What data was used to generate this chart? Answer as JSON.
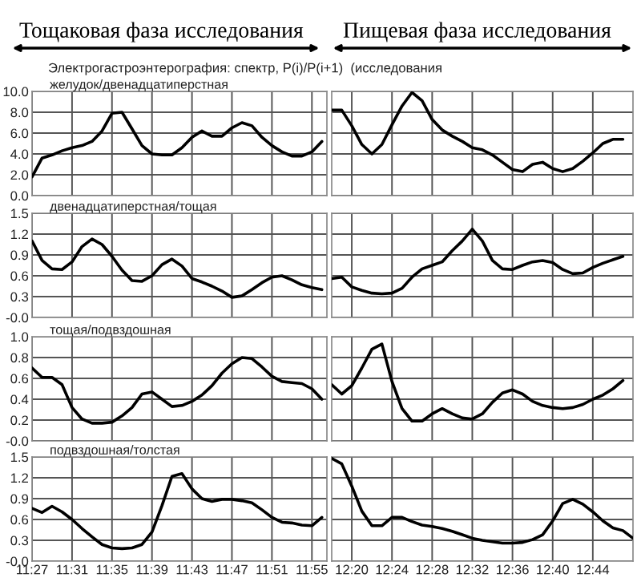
{
  "chart_data": [
    {
      "type": "line",
      "title": "желудок/двенадцатиперстная",
      "annotations": [
        "Тощаковая фаза исследования",
        "Электрогастроэнтерография: спектр, P(i)/P(i+1)  (исследования"
      ],
      "x": [
        11.45,
        11.4667,
        11.4833,
        11.5,
        11.5167,
        11.5333,
        11.55,
        11.5667,
        11.5833,
        11.6,
        11.6167,
        11.6333,
        11.65,
        11.6667,
        11.6833,
        11.7,
        11.7167,
        11.7333,
        11.75,
        11.7667,
        11.7833,
        11.8,
        11.8167,
        11.8333,
        11.85,
        11.8667,
        11.8833,
        11.9,
        11.9167,
        11.9333
      ],
      "series": [
        {
          "color": "#000000",
          "values": [
            1.8,
            3.6,
            3.9,
            4.3,
            4.6,
            4.8,
            5.2,
            6.2,
            7.9,
            8.0,
            6.4,
            4.8,
            4.0,
            3.9,
            3.9,
            4.6,
            5.6,
            6.2,
            5.7,
            5.7,
            6.5,
            7.0,
            6.7,
            5.6,
            4.8,
            4.2,
            3.8,
            3.8,
            4.2,
            5.2
          ]
        }
      ],
      "xlim": [
        11.45,
        11.9417
      ],
      "xticks": [
        {
          "value": 11.45,
          "label": null
        },
        {
          "value": 11.5167,
          "label": null
        },
        {
          "value": 11.5833,
          "label": null
        },
        {
          "value": 11.65,
          "label": null
        },
        {
          "value": 11.7167,
          "label": null
        },
        {
          "value": 11.7833,
          "label": null
        },
        {
          "value": 11.85,
          "label": null
        },
        {
          "value": 11.9167,
          "label": null
        }
      ],
      "ylim": [
        0,
        10
      ],
      "yticks": [
        {
          "value": 0,
          "label": "0.0"
        },
        {
          "value": 2,
          "label": "2.0"
        },
        {
          "value": 4,
          "label": "4.0"
        },
        {
          "value": 6,
          "label": "6.0"
        },
        {
          "value": 8,
          "label": "8.0"
        },
        {
          "value": 10,
          "label": "10.0"
        }
      ],
      "grid": true,
      "tick_labels": "y"
    },
    {
      "type": "line",
      "annotations": [
        "Пищевая фаза исследования"
      ],
      "x": [
        12.3,
        12.3167,
        12.3333,
        12.35,
        12.3667,
        12.3833,
        12.4,
        12.4167,
        12.4333,
        12.45,
        12.4667,
        12.4833,
        12.5,
        12.5167,
        12.5333,
        12.55,
        12.5667,
        12.5833,
        12.6,
        12.6167,
        12.6333,
        12.65,
        12.6667,
        12.6833,
        12.7,
        12.7167,
        12.7333,
        12.75,
        12.7667,
        12.7833
      ],
      "series": [
        {
          "color": "#000000",
          "values": [
            8.2,
            8.2,
            6.7,
            4.9,
            4.0,
            4.9,
            6.8,
            8.6,
            9.9,
            9.1,
            7.3,
            6.3,
            5.7,
            5.2,
            4.6,
            4.4,
            3.9,
            3.2,
            2.5,
            2.3,
            3.0,
            3.2,
            2.6,
            2.3,
            2.6,
            3.3,
            4.1,
            5.0,
            5.4,
            5.4
          ]
        }
      ],
      "xlim": [
        12.3,
        12.8
      ],
      "xticks": [
        {
          "value": 12.3333,
          "label": null
        },
        {
          "value": 12.4,
          "label": null
        },
        {
          "value": 12.4667,
          "label": null
        },
        {
          "value": 12.5333,
          "label": null
        },
        {
          "value": 12.6,
          "label": null
        },
        {
          "value": 12.6667,
          "label": null
        },
        {
          "value": 12.7333,
          "label": null
        }
      ],
      "ylim": [
        0,
        10
      ],
      "yticks": [
        {
          "value": 0,
          "label": null
        },
        {
          "value": 2,
          "label": null
        },
        {
          "value": 4,
          "label": null
        },
        {
          "value": 6,
          "label": null
        },
        {
          "value": 8,
          "label": null
        },
        {
          "value": 10,
          "label": null
        }
      ],
      "grid": true,
      "tick_labels": false
    },
    {
      "type": "line",
      "title": "двенадцатиперстная/тощая",
      "x": [
        11.45,
        11.4667,
        11.4833,
        11.5,
        11.5167,
        11.5333,
        11.55,
        11.5667,
        11.5833,
        11.6,
        11.6167,
        11.6333,
        11.65,
        11.6667,
        11.6833,
        11.7,
        11.7167,
        11.7333,
        11.75,
        11.7667,
        11.7833,
        11.8,
        11.8167,
        11.8333,
        11.85,
        11.8667,
        11.8833,
        11.9,
        11.9167,
        11.9333
      ],
      "series": [
        {
          "color": "#000000",
          "values": [
            1.1,
            0.82,
            0.7,
            0.69,
            0.8,
            1.02,
            1.13,
            1.05,
            0.88,
            0.68,
            0.53,
            0.52,
            0.6,
            0.76,
            0.84,
            0.74,
            0.56,
            0.51,
            0.45,
            0.38,
            0.29,
            0.31,
            0.4,
            0.5,
            0.58,
            0.6,
            0.54,
            0.47,
            0.43,
            0.4
          ]
        }
      ],
      "xlim": [
        11.45,
        11.9417
      ],
      "xticks": [
        {
          "value": 11.45,
          "label": null
        },
        {
          "value": 11.5167,
          "label": null
        },
        {
          "value": 11.5833,
          "label": null
        },
        {
          "value": 11.65,
          "label": null
        },
        {
          "value": 11.7167,
          "label": null
        },
        {
          "value": 11.7833,
          "label": null
        },
        {
          "value": 11.85,
          "label": null
        },
        {
          "value": 11.9167,
          "label": null
        }
      ],
      "ylim": [
        0,
        1.5
      ],
      "yticks": [
        {
          "value": 0,
          "label": "-0.0"
        },
        {
          "value": 0.3,
          "label": "0.3"
        },
        {
          "value": 0.6,
          "label": "0.6"
        },
        {
          "value": 0.9,
          "label": "0.9"
        },
        {
          "value": 1.2,
          "label": "1.2"
        },
        {
          "value": 1.5,
          "label": "1.5"
        }
      ],
      "grid": true,
      "tick_labels": "y"
    },
    {
      "type": "line",
      "x": [
        12.3,
        12.3167,
        12.3333,
        12.35,
        12.3667,
        12.3833,
        12.4,
        12.4167,
        12.4333,
        12.45,
        12.4667,
        12.4833,
        12.5,
        12.5167,
        12.5333,
        12.55,
        12.5667,
        12.5833,
        12.6,
        12.6167,
        12.6333,
        12.65,
        12.6667,
        12.6833,
        12.7,
        12.7167,
        12.7333,
        12.75,
        12.7667,
        12.7833
      ],
      "series": [
        {
          "color": "#000000",
          "values": [
            0.56,
            0.58,
            0.44,
            0.39,
            0.35,
            0.34,
            0.35,
            0.42,
            0.58,
            0.7,
            0.75,
            0.8,
            0.96,
            1.1,
            1.27,
            1.1,
            0.82,
            0.7,
            0.69,
            0.75,
            0.8,
            0.82,
            0.79,
            0.69,
            0.63,
            0.64,
            0.72,
            0.78,
            0.83,
            0.88
          ]
        }
      ],
      "xlim": [
        12.3,
        12.8
      ],
      "xticks": [
        {
          "value": 12.3333,
          "label": null
        },
        {
          "value": 12.4,
          "label": null
        },
        {
          "value": 12.4667,
          "label": null
        },
        {
          "value": 12.5333,
          "label": null
        },
        {
          "value": 12.6,
          "label": null
        },
        {
          "value": 12.6667,
          "label": null
        },
        {
          "value": 12.7333,
          "label": null
        }
      ],
      "ylim": [
        0,
        1.5
      ],
      "yticks": [
        {
          "value": 0,
          "label": null
        },
        {
          "value": 0.3,
          "label": null
        },
        {
          "value": 0.6,
          "label": null
        },
        {
          "value": 0.9,
          "label": null
        },
        {
          "value": 1.2,
          "label": null
        },
        {
          "value": 1.5,
          "label": null
        }
      ],
      "grid": true,
      "tick_labels": false
    },
    {
      "type": "line",
      "title": "тощая/подвздошная",
      "x": [
        11.45,
        11.4667,
        11.4833,
        11.5,
        11.5167,
        11.5333,
        11.55,
        11.5667,
        11.5833,
        11.6,
        11.6167,
        11.6333,
        11.65,
        11.6667,
        11.6833,
        11.7,
        11.7167,
        11.7333,
        11.75,
        11.7667,
        11.7833,
        11.8,
        11.8167,
        11.8333,
        11.85,
        11.8667,
        11.8833,
        11.9,
        11.9167,
        11.9333
      ],
      "series": [
        {
          "color": "#000000",
          "values": [
            0.7,
            0.61,
            0.61,
            0.54,
            0.32,
            0.21,
            0.17,
            0.17,
            0.18,
            0.24,
            0.32,
            0.45,
            0.47,
            0.4,
            0.33,
            0.34,
            0.38,
            0.44,
            0.53,
            0.65,
            0.74,
            0.8,
            0.79,
            0.71,
            0.62,
            0.57,
            0.56,
            0.55,
            0.5,
            0.4
          ]
        }
      ],
      "xlim": [
        11.45,
        11.9417
      ],
      "xticks": [
        {
          "value": 11.45,
          "label": null
        },
        {
          "value": 11.5167,
          "label": null
        },
        {
          "value": 11.5833,
          "label": null
        },
        {
          "value": 11.65,
          "label": null
        },
        {
          "value": 11.7167,
          "label": null
        },
        {
          "value": 11.7833,
          "label": null
        },
        {
          "value": 11.85,
          "label": null
        },
        {
          "value": 11.9167,
          "label": null
        }
      ],
      "ylim": [
        0,
        1.0
      ],
      "yticks": [
        {
          "value": 0,
          "label": "-0.0"
        },
        {
          "value": 0.2,
          "label": "0.2"
        },
        {
          "value": 0.4,
          "label": "0.4"
        },
        {
          "value": 0.6,
          "label": "0.6"
        },
        {
          "value": 0.8,
          "label": "0.8"
        },
        {
          "value": 1.0,
          "label": "1.0"
        }
      ],
      "grid": true,
      "tick_labels": "y"
    },
    {
      "type": "line",
      "x": [
        12.3,
        12.3167,
        12.3333,
        12.35,
        12.3667,
        12.3833,
        12.4,
        12.4167,
        12.4333,
        12.45,
        12.4667,
        12.4833,
        12.5,
        12.5167,
        12.5333,
        12.55,
        12.5667,
        12.5833,
        12.6,
        12.6167,
        12.6333,
        12.65,
        12.6667,
        12.6833,
        12.7,
        12.7167,
        12.7333,
        12.75,
        12.7667,
        12.7833
      ],
      "series": [
        {
          "color": "#000000",
          "values": [
            0.54,
            0.45,
            0.53,
            0.7,
            0.88,
            0.93,
            0.57,
            0.31,
            0.19,
            0.19,
            0.26,
            0.31,
            0.26,
            0.22,
            0.21,
            0.26,
            0.37,
            0.46,
            0.49,
            0.45,
            0.38,
            0.34,
            0.32,
            0.31,
            0.32,
            0.35,
            0.4,
            0.44,
            0.5,
            0.58
          ]
        }
      ],
      "xlim": [
        12.3,
        12.8
      ],
      "xticks": [
        {
          "value": 12.3333,
          "label": null
        },
        {
          "value": 12.4,
          "label": null
        },
        {
          "value": 12.4667,
          "label": null
        },
        {
          "value": 12.5333,
          "label": null
        },
        {
          "value": 12.6,
          "label": null
        },
        {
          "value": 12.6667,
          "label": null
        },
        {
          "value": 12.7333,
          "label": null
        }
      ],
      "ylim": [
        0,
        1.0
      ],
      "yticks": [
        {
          "value": 0,
          "label": null
        },
        {
          "value": 0.2,
          "label": null
        },
        {
          "value": 0.4,
          "label": null
        },
        {
          "value": 0.6,
          "label": null
        },
        {
          "value": 0.8,
          "label": null
        },
        {
          "value": 1.0,
          "label": null
        }
      ],
      "grid": true,
      "tick_labels": false
    },
    {
      "type": "line",
      "title": "подвздошная/толстая",
      "x": [
        11.45,
        11.4667,
        11.4833,
        11.5,
        11.5167,
        11.5333,
        11.55,
        11.5667,
        11.5833,
        11.6,
        11.6167,
        11.6333,
        11.65,
        11.6667,
        11.6833,
        11.7,
        11.7167,
        11.7333,
        11.75,
        11.7667,
        11.7833,
        11.8,
        11.8167,
        11.8333,
        11.85,
        11.8667,
        11.8833,
        11.9,
        11.9167,
        11.9333
      ],
      "series": [
        {
          "color": "#000000",
          "values": [
            0.76,
            0.7,
            0.79,
            0.71,
            0.6,
            0.47,
            0.35,
            0.24,
            0.19,
            0.18,
            0.19,
            0.24,
            0.42,
            0.8,
            1.22,
            1.26,
            1.04,
            0.9,
            0.86,
            0.89,
            0.89,
            0.87,
            0.84,
            0.74,
            0.63,
            0.56,
            0.55,
            0.52,
            0.51,
            0.63
          ]
        }
      ],
      "xlim": [
        11.45,
        11.9417
      ],
      "xticks": [
        {
          "value": 11.45,
          "label": "11:27"
        },
        {
          "value": 11.5167,
          "label": "11:31"
        },
        {
          "value": 11.5833,
          "label": "11:35"
        },
        {
          "value": 11.65,
          "label": "11:39"
        },
        {
          "value": 11.7167,
          "label": "11:43"
        },
        {
          "value": 11.7833,
          "label": "11:47"
        },
        {
          "value": 11.85,
          "label": "11:51"
        },
        {
          "value": 11.9167,
          "label": "11:55"
        }
      ],
      "ylim": [
        0,
        1.5
      ],
      "yticks": [
        {
          "value": 0,
          "label": "-0.0"
        },
        {
          "value": 0.3,
          "label": "0.3"
        },
        {
          "value": 0.6,
          "label": "0.6"
        },
        {
          "value": 0.9,
          "label": "0.9"
        },
        {
          "value": 1.2,
          "label": "1.2"
        },
        {
          "value": 1.5,
          "label": "1.5"
        }
      ],
      "grid": true
    },
    {
      "type": "line",
      "x": [
        12.3,
        12.3167,
        12.3333,
        12.35,
        12.3667,
        12.3833,
        12.4,
        12.4167,
        12.4333,
        12.45,
        12.4667,
        12.4833,
        12.5,
        12.5167,
        12.5333,
        12.55,
        12.5667,
        12.5833,
        12.6,
        12.6167,
        12.6333,
        12.65,
        12.6667,
        12.6833,
        12.7,
        12.7167,
        12.7333,
        12.75,
        12.7667,
        12.7833,
        12.8
      ],
      "series": [
        {
          "color": "#000000",
          "values": [
            1.48,
            1.4,
            1.08,
            0.72,
            0.51,
            0.51,
            0.63,
            0.63,
            0.57,
            0.52,
            0.5,
            0.47,
            0.43,
            0.38,
            0.33,
            0.3,
            0.28,
            0.26,
            0.26,
            0.27,
            0.31,
            0.38,
            0.58,
            0.83,
            0.89,
            0.82,
            0.71,
            0.58,
            0.48,
            0.44,
            0.33
          ]
        }
      ],
      "xlim": [
        12.3,
        12.8
      ],
      "xticks": [
        {
          "value": 12.3333,
          "label": "12:20"
        },
        {
          "value": 12.4,
          "label": "12:24"
        },
        {
          "value": 12.4667,
          "label": "12:28"
        },
        {
          "value": 12.5333,
          "label": "12:32"
        },
        {
          "value": 12.6,
          "label": "12:36"
        },
        {
          "value": 12.6667,
          "label": "12:40"
        },
        {
          "value": 12.7333,
          "label": "12:44"
        }
      ],
      "ylim": [
        0,
        1.5
      ],
      "yticks": [
        {
          "value": 0,
          "label": null
        },
        {
          "value": 0.3,
          "label": null
        },
        {
          "value": 0.6,
          "label": null
        },
        {
          "value": 0.9,
          "label": null
        },
        {
          "value": 1.2,
          "label": null
        },
        {
          "value": 1.5,
          "label": null
        }
      ],
      "grid": true,
      "tick_labels": "x"
    }
  ]
}
